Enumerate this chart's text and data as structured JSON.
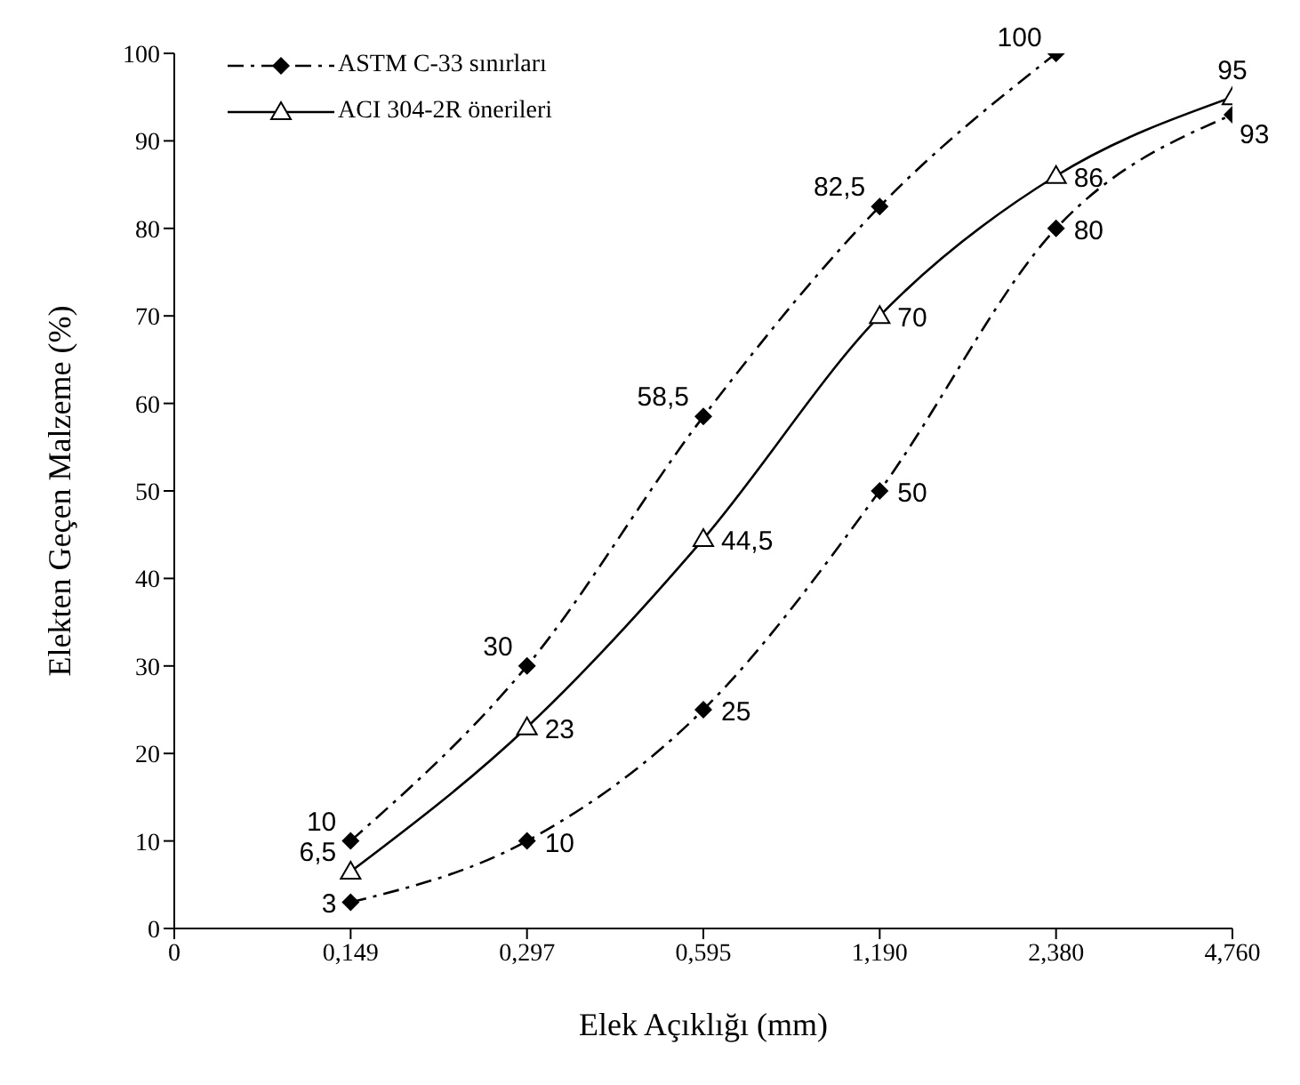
{
  "chart_data": {
    "type": "line",
    "xlabel": "Elek Açıklığı (mm)",
    "ylabel": "Elekten Geçen Malzeme (%)",
    "categories": [
      "0",
      "0,149",
      "0,297",
      "0,595",
      "1,190",
      "2,380",
      "4,760"
    ],
    "series": [
      {
        "name": "ASTM C-33 sınırları",
        "color": "#000000",
        "marker": "diamond",
        "line_style": "dashed",
        "values": [
          null,
          10,
          30,
          58.5,
          82.5,
          100,
          null
        ],
        "value_labels": [
          null,
          "10",
          "30",
          "58,5",
          "82,5",
          "100",
          null
        ]
      },
      {
        "color": "#000000",
        "marker": "diamond",
        "line_style": "dashed",
        "values": [
          null,
          3,
          10,
          25,
          50,
          80,
          93
        ],
        "value_labels": [
          null,
          "3",
          "10",
          "25",
          "50",
          "80",
          "93"
        ]
      },
      {
        "name": "ACI 304-2R önerileri",
        "color": "#000000",
        "marker": "triangle",
        "line_style": "solid",
        "values": [
          null,
          6.5,
          23,
          44.5,
          70,
          86,
          95
        ],
        "value_labels": [
          null,
          "6,5",
          "23",
          "44,5",
          "70",
          "86",
          "95"
        ]
      }
    ],
    "ylim": [
      0,
      100
    ],
    "yticks": [
      0,
      10,
      20,
      30,
      40,
      50,
      60,
      70,
      80,
      90,
      100
    ],
    "legend": "top left"
  }
}
